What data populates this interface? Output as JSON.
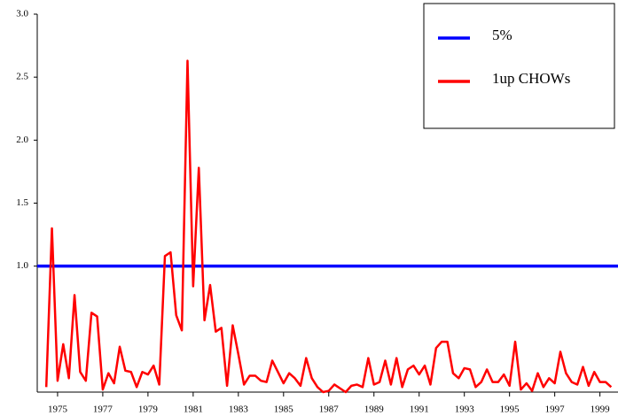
{
  "chart_data": {
    "type": "line",
    "xlim": [
      1974.1,
      1999.8
    ],
    "ylim": [
      0,
      3.0
    ],
    "xticks": [
      1975,
      1977,
      1979,
      1981,
      1983,
      1985,
      1987,
      1989,
      1991,
      1993,
      1995,
      1997,
      1999
    ],
    "yticks": [
      {
        "value": 1.0,
        "label": "1.0"
      },
      1.5,
      {
        "value": 2.0,
        "label": "2.0"
      },
      2.5,
      {
        "value": 3.0,
        "label": "3.0"
      }
    ],
    "legend": "top-right",
    "series": [
      {
        "name": "5%",
        "color": "#0000ff",
        "x": [
          1974.1,
          1999.8
        ],
        "values": [
          1.0,
          1.0
        ]
      },
      {
        "name": "1up CHOWs",
        "color": "#ff0000",
        "x": [
          1974.5,
          1974.75,
          1975,
          1975.25,
          1975.5,
          1975.75,
          1976,
          1976.25,
          1976.5,
          1976.75,
          1977,
          1977.25,
          1977.5,
          1977.75,
          1978,
          1978.25,
          1978.5,
          1978.75,
          1979,
          1979.25,
          1979.5,
          1979.75,
          1980,
          1980.25,
          1980.5,
          1980.75,
          1981,
          1981.25,
          1981.5,
          1981.75,
          1982,
          1982.25,
          1982.5,
          1982.75,
          1983,
          1983.25,
          1983.5,
          1983.75,
          1984,
          1984.25,
          1984.5,
          1984.75,
          1985,
          1985.25,
          1985.5,
          1985.75,
          1986,
          1986.25,
          1986.5,
          1986.75,
          1987,
          1987.25,
          1987.5,
          1987.75,
          1988,
          1988.25,
          1988.5,
          1988.75,
          1989,
          1989.25,
          1989.5,
          1989.75,
          1990,
          1990.25,
          1990.5,
          1990.75,
          1991,
          1991.25,
          1991.5,
          1991.75,
          1992,
          1992.25,
          1992.5,
          1992.75,
          1993,
          1993.25,
          1993.5,
          1993.75,
          1994,
          1994.25,
          1994.5,
          1994.75,
          1995,
          1995.25,
          1995.5,
          1995.75,
          1996,
          1996.25,
          1996.5,
          1996.75,
          1997,
          1997.25,
          1997.5,
          1997.75,
          1998,
          1998.25,
          1998.5,
          1998.75,
          1999,
          1999.25,
          1999.5
        ],
        "values": [
          0.04,
          1.3,
          0.09,
          0.38,
          0.11,
          0.77,
          0.16,
          0.09,
          0.63,
          0.6,
          0.02,
          0.15,
          0.07,
          0.36,
          0.17,
          0.16,
          0.04,
          0.16,
          0.14,
          0.21,
          0.06,
          1.08,
          1.11,
          0.61,
          0.49,
          2.63,
          0.84,
          1.78,
          0.57,
          0.85,
          0.48,
          0.51,
          0.05,
          0.53,
          0.3,
          0.06,
          0.13,
          0.13,
          0.09,
          0.08,
          0.25,
          0.16,
          0.07,
          0.15,
          0.11,
          0.05,
          0.27,
          0.11,
          0.04,
          0.0,
          0.01,
          0.06,
          0.03,
          0.0,
          0.05,
          0.06,
          0.04,
          0.27,
          0.06,
          0.08,
          0.25,
          0.06,
          0.27,
          0.04,
          0.18,
          0.21,
          0.14,
          0.21,
          0.06,
          0.35,
          0.4,
          0.4,
          0.15,
          0.11,
          0.19,
          0.18,
          0.04,
          0.08,
          0.18,
          0.08,
          0.08,
          0.14,
          0.05,
          0.4,
          0.02,
          0.07,
          0.01,
          0.15,
          0.04,
          0.11,
          0.07,
          0.32,
          0.15,
          0.08,
          0.06,
          0.2,
          0.05,
          0.16,
          0.08,
          0.08,
          0.04
        ]
      }
    ]
  }
}
